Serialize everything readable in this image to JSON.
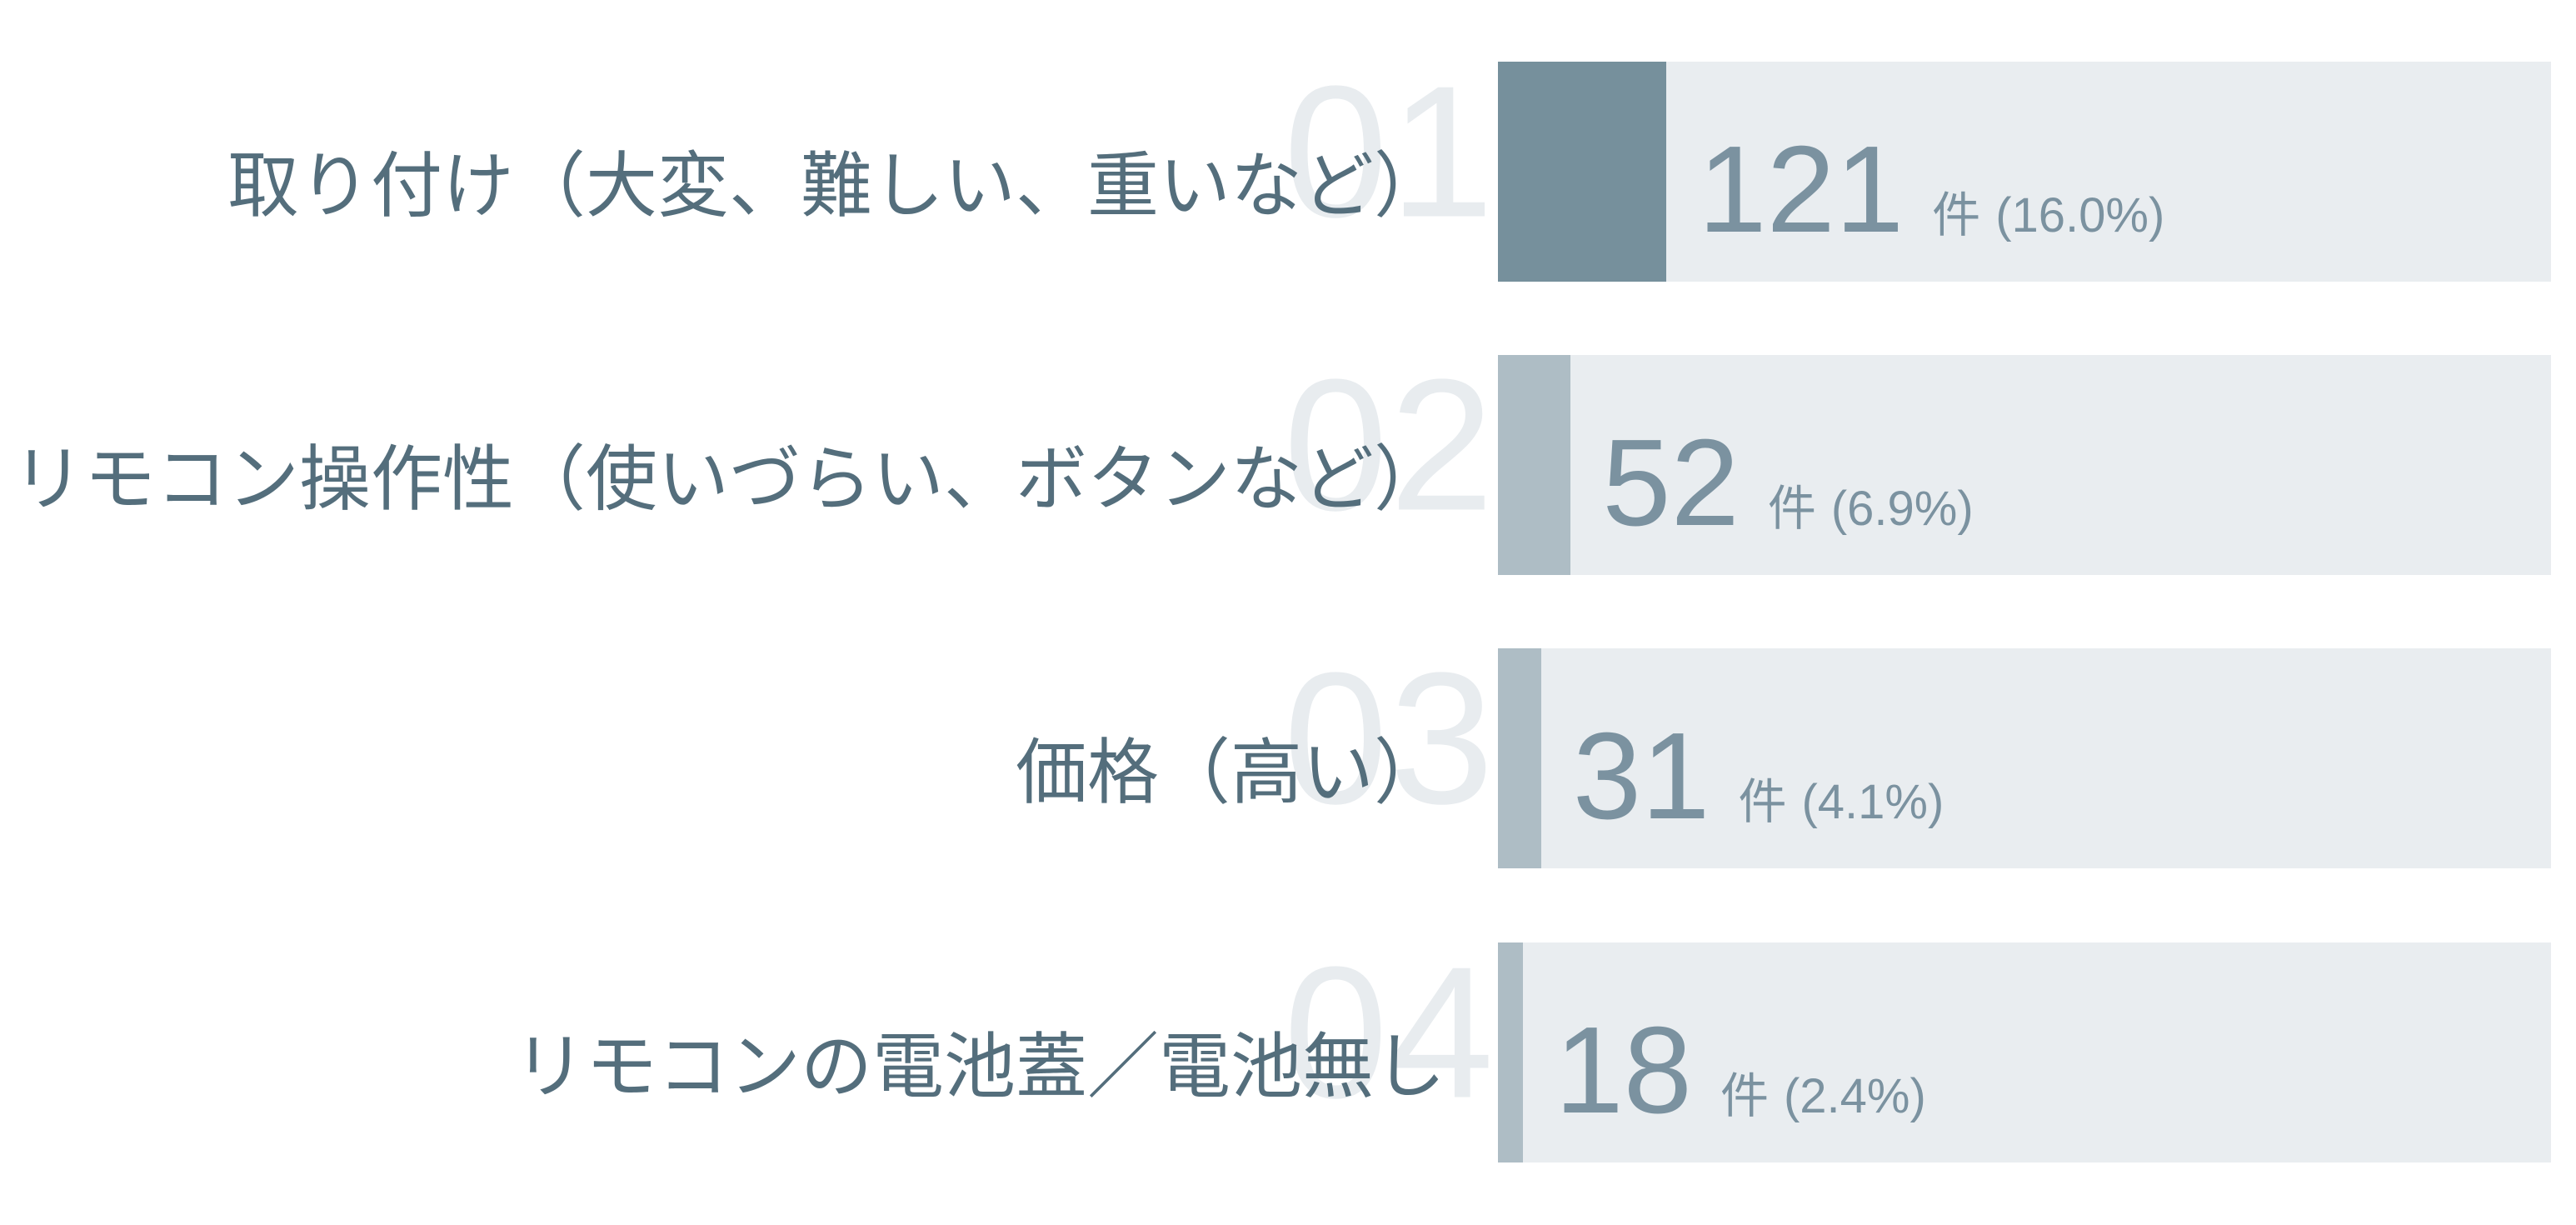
{
  "colors": {
    "background": "#ffffff",
    "bar_track": "#e9edf0",
    "bar_fill_primary": "#76909c",
    "bar_fill_secondary": "#aebdc5",
    "category_text": "#546e7c",
    "value_text": "#7b92a0",
    "ghost_rank_text": "#e8ecef"
  },
  "chart_data": {
    "type": "bar",
    "orientation": "horizontal",
    "title": "",
    "xlabel": "",
    "ylabel": "",
    "unit": "件",
    "categories": [
      "取り付け（大変、難しい、重いなど）",
      "リモコン操作性（使いづらい、ボタンなど）",
      "価格（高い）",
      "リモコンの電池蓋／電池無し"
    ],
    "values": [
      121,
      52,
      31,
      18
    ],
    "percentages": [
      16.0,
      6.9,
      4.1,
      2.4
    ],
    "ranks": [
      "01",
      "02",
      "03",
      "04"
    ],
    "legend": "none",
    "grid": false,
    "bar_scale_note": "fill width equals percentage of full track width"
  },
  "rows": [
    {
      "rank": "01",
      "label": "取り付け（大変、難しい、重いなど）",
      "value": "121",
      "unit": "件",
      "pct": "(16.0%)",
      "fill_pct": 16.0,
      "fill_color": "#76909c"
    },
    {
      "rank": "02",
      "label": "リモコン操作性（使いづらい、ボタンなど）",
      "value": "52",
      "unit": "件",
      "pct": "(6.9%)",
      "fill_pct": 6.9,
      "fill_color": "#aebdc5"
    },
    {
      "rank": "03",
      "label": "価格（高い）",
      "value": "31",
      "unit": "件",
      "pct": "(4.1%)",
      "fill_pct": 4.1,
      "fill_color": "#aebdc5"
    },
    {
      "rank": "04",
      "label": "リモコンの電池蓋／電池無し",
      "value": "18",
      "unit": "件",
      "pct": "(2.4%)",
      "fill_pct": 2.4,
      "fill_color": "#aebdc5"
    }
  ]
}
